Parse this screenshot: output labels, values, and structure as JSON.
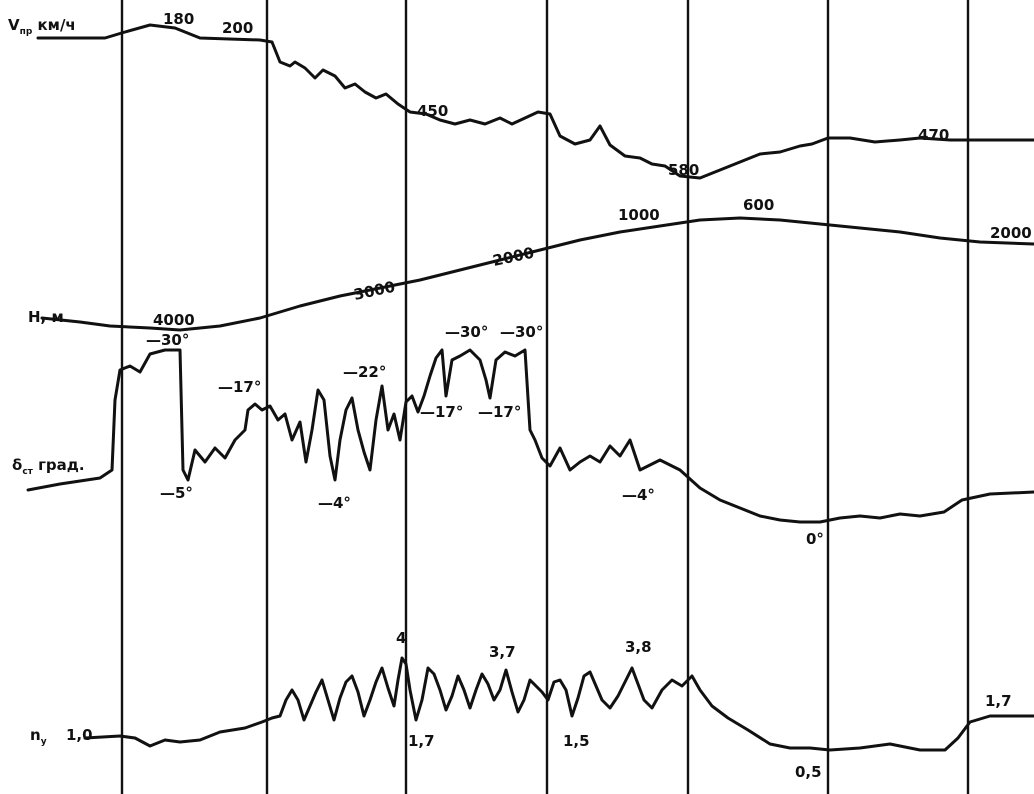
{
  "chart_data": {
    "type": "line",
    "title": "",
    "grid": "vertical lines only",
    "traces": [
      {
        "id": "v",
        "name_main": "V",
        "name_sub": "пр",
        "name_rest": " км/ч",
        "values": [
          180,
          200,
          450,
          580,
          470
        ],
        "labels": [
          "180",
          "200",
          "450",
          "580",
          "470"
        ]
      },
      {
        "id": "h",
        "name_main": "H, м",
        "values": [
          4000,
          3000,
          2000,
          1000,
          600,
          2000
        ],
        "labels": [
          "4000",
          "3000",
          "2000",
          "1000",
          "600",
          "2000"
        ]
      },
      {
        "id": "d",
        "name_main": "δ",
        "name_sub": "ст",
        "name_rest": " град.",
        "values": [
          -30,
          -5,
          -17,
          -4,
          -22,
          -17,
          -30,
          -30,
          -17,
          -4,
          0
        ],
        "labels": [
          "—30°",
          "—5°",
          "—17°",
          "—4°",
          "—22°",
          "—17°",
          "—30°",
          "—30°",
          "—17°",
          "—4°",
          "0°"
        ]
      },
      {
        "id": "n",
        "name_main": "n",
        "name_sub": "y",
        "values": [
          1.0,
          4,
          1.7,
          3.7,
          1.5,
          3.8,
          0.5,
          1.7
        ],
        "labels": [
          "1,0",
          "4",
          "1,7",
          "3,7",
          "1,5",
          "3,8",
          "0,5",
          "1,7"
        ]
      }
    ],
    "vertical_markers": 7,
    "colors": {
      "trace": "#111111",
      "background": "#ffffff"
    }
  }
}
